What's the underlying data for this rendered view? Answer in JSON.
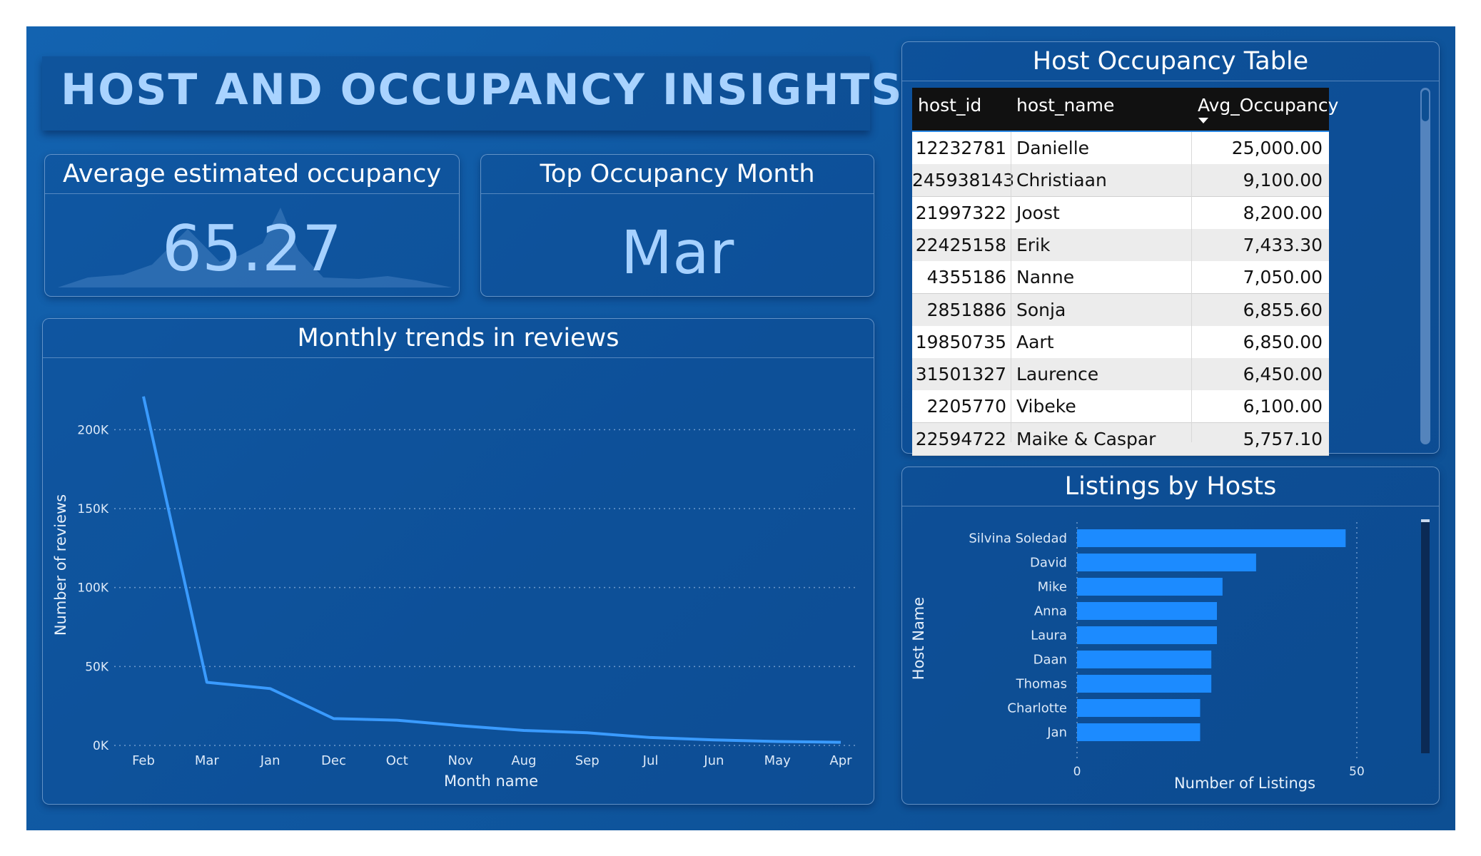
{
  "dashboard": {
    "title": "HOST AND OCCUPANCY INSIGHTS"
  },
  "kpi_occupancy": {
    "label": "Average estimated occupancy",
    "value": "65.27"
  },
  "kpi_month": {
    "label": "Top Occupancy Month",
    "value": "Mar"
  },
  "table": {
    "title": "Host Occupancy Table",
    "columns": [
      "host_id",
      "host_name",
      "Avg_Occupancy"
    ],
    "sort_column": "Avg_Occupancy",
    "rows": [
      {
        "host_id": "12232781",
        "host_name": "Danielle",
        "avg": "25,000.00"
      },
      {
        "host_id": "245938143",
        "host_name": "Christiaan",
        "avg": "9,100.00"
      },
      {
        "host_id": "21997322",
        "host_name": "Joost",
        "avg": "8,200.00"
      },
      {
        "host_id": "22425158",
        "host_name": "Erik",
        "avg": "7,433.30"
      },
      {
        "host_id": "4355186",
        "host_name": "Nanne",
        "avg": "7,050.00"
      },
      {
        "host_id": "2851886",
        "host_name": "Sonja",
        "avg": "6,855.60"
      },
      {
        "host_id": "19850735",
        "host_name": "Aart",
        "avg": "6,850.00"
      },
      {
        "host_id": "31501327",
        "host_name": "Laurence",
        "avg": "6,450.00"
      },
      {
        "host_id": "2205770",
        "host_name": "Vibeke",
        "avg": "6,100.00"
      },
      {
        "host_id": "22594722",
        "host_name": "Maike & Caspar",
        "avg": "5,757.10"
      }
    ]
  },
  "colors": {
    "line": "#3a9bff",
    "bar": "#1c8bff",
    "kpi_text": "#a6d1ff",
    "title_text": "#a9d3ff"
  },
  "chart_data": [
    {
      "type": "line",
      "title": "Monthly trends in reviews",
      "xlabel": "Month name",
      "ylabel": "Number of reviews",
      "categories": [
        "Feb",
        "Mar",
        "Jan",
        "Dec",
        "Oct",
        "Nov",
        "Aug",
        "Sep",
        "Jul",
        "Jun",
        "May",
        "Apr"
      ],
      "values": [
        221000,
        40000,
        36000,
        17000,
        16000,
        12500,
        9500,
        8000,
        5000,
        3500,
        2500,
        2000
      ],
      "yticks": [
        0,
        50000,
        100000,
        150000,
        200000
      ],
      "ytick_labels": [
        "0K",
        "50K",
        "100K",
        "150K",
        "200K"
      ],
      "ylim": [
        0,
        225000
      ],
      "grid": true
    },
    {
      "type": "bar",
      "orientation": "horizontal",
      "title": "Listings by Hosts",
      "xlabel": "Number of Listings",
      "ylabel": "Host Name",
      "categories": [
        "Silvina Soledad",
        "David",
        "Mike",
        "Anna",
        "Laura",
        "Daan",
        "Thomas",
        "Charlotte",
        "Jan"
      ],
      "values": [
        48,
        32,
        26,
        25,
        25,
        24,
        24,
        22,
        22
      ],
      "xticks": [
        0,
        50
      ],
      "xlim": [
        0,
        50
      ],
      "grid": true
    }
  ]
}
